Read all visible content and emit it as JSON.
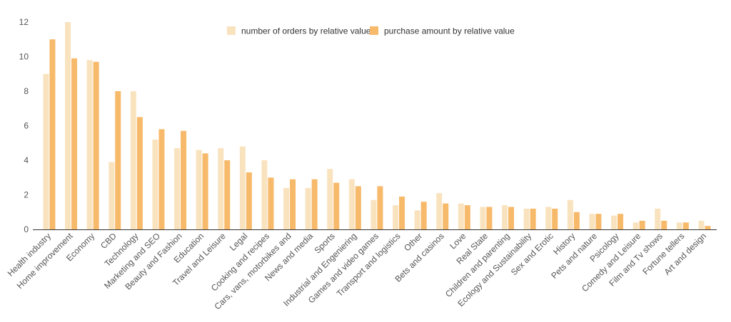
{
  "chart_data": {
    "type": "bar",
    "ylim": [
      0,
      12
    ],
    "yticks": [
      0,
      2,
      4,
      6,
      8,
      10,
      12
    ],
    "grid": false,
    "legend_position": "top-center",
    "categories": [
      "Health industry",
      "Home improvement",
      "Economy",
      "CBD",
      "Technology",
      "Marketing and SEO",
      "Beauty and Fashion",
      "Education",
      "Travel and Leisure",
      "Legal",
      "Cooking and recipes",
      "Cars, vans, motorbikes and",
      "News and media",
      "Sports",
      "Industrial and Engeniering",
      "Games and video games",
      "Transport and logistics",
      "Other",
      "Bets and casinos",
      "Love",
      "Real State",
      "Children and parenting",
      "Ecology and Sustainability",
      "Sex and Erotic",
      "History",
      "Pets and nature",
      "Psicology",
      "Comedy and Leisure",
      "Film and Tv shows",
      "Fortune tellers",
      "Art and design"
    ],
    "series": [
      {
        "name": "number of orders by relative value",
        "color": "#f9e3bf",
        "values": [
          9.0,
          12.0,
          9.8,
          3.9,
          8.0,
          5.2,
          4.7,
          4.6,
          4.7,
          4.8,
          4.0,
          2.4,
          2.4,
          3.5,
          2.9,
          1.7,
          1.4,
          1.1,
          2.1,
          1.5,
          1.3,
          1.4,
          1.2,
          1.3,
          1.7,
          0.9,
          0.8,
          0.4,
          1.2,
          0.4,
          0.5
        ]
      },
      {
        "name": "purchase amount by relative value",
        "color": "#f7b96a",
        "values": [
          11.0,
          9.9,
          9.7,
          8.0,
          6.5,
          5.8,
          5.7,
          4.4,
          4.0,
          3.3,
          3.0,
          2.9,
          2.9,
          2.7,
          2.5,
          2.5,
          1.9,
          1.6,
          1.5,
          1.4,
          1.3,
          1.3,
          1.2,
          1.2,
          1.0,
          0.9,
          0.9,
          0.5,
          0.5,
          0.4,
          0.2
        ]
      }
    ]
  }
}
